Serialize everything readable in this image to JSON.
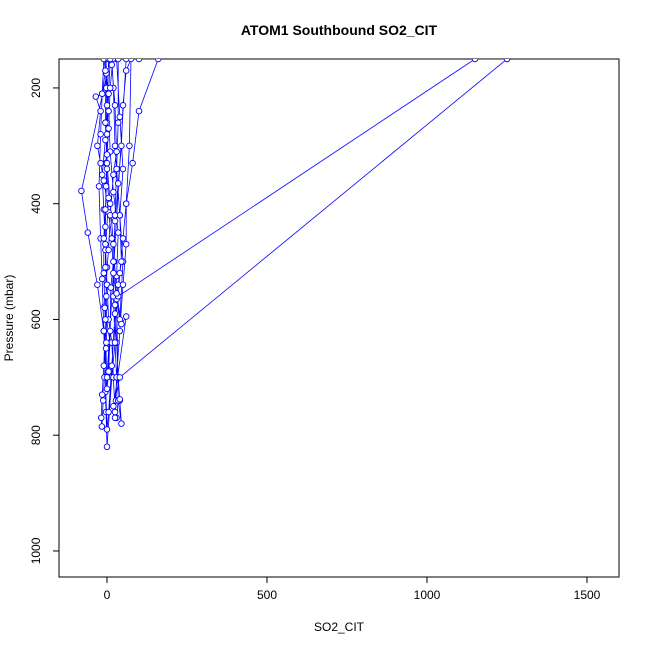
{
  "chart_data": {
    "type": "scatter",
    "title": "ATOM1 Southbound SO2_CIT",
    "xlabel": "SO2_CIT",
    "ylabel": "Pressure (mbar)",
    "xlim": [
      -150,
      1600
    ],
    "ylim": [
      1045,
      150
    ],
    "y_reversed": true,
    "x_ticks": [
      0,
      500,
      1000,
      1500
    ],
    "y_ticks": [
      200,
      400,
      600,
      800,
      1000
    ],
    "grid": false,
    "series": [
      {
        "color": "#0000ff",
        "marker": "open-circle",
        "line": true,
        "points": [
          [
            -5,
            150
          ],
          [
            -2,
            200
          ],
          [
            0,
            260
          ],
          [
            -3,
            330
          ],
          [
            5,
            390
          ],
          [
            -5,
            480
          ],
          [
            0,
            540
          ],
          [
            -8,
            578
          ],
          [
            10,
            640
          ],
          [
            0,
            700
          ],
          [
            -5,
            725
          ],
          [
            -3,
            760
          ],
          [
            0,
            820
          ],
          [
            15,
            700
          ],
          [
            25,
            640
          ],
          [
            30,
            560
          ],
          [
            20,
            470
          ],
          [
            10,
            400
          ],
          [
            0,
            330
          ],
          [
            -5,
            260
          ],
          [
            -3,
            150
          ],
          [
            -2,
            175
          ],
          [
            5,
            240
          ],
          [
            10,
            310
          ],
          [
            20,
            380
          ],
          [
            35,
            450
          ],
          [
            30,
            525
          ],
          [
            25,
            590
          ],
          [
            15,
            680
          ],
          [
            5,
            760
          ],
          [
            0,
            790
          ],
          [
            -5,
            700
          ],
          [
            -10,
            620
          ],
          [
            -15,
            530
          ],
          [
            -20,
            460
          ],
          [
            -25,
            370
          ],
          [
            -20,
            280
          ],
          [
            -15,
            210
          ],
          [
            -10,
            150
          ],
          [
            -5,
            170
          ],
          [
            -15,
            210
          ],
          [
            -35,
            215
          ],
          [
            -20,
            240
          ],
          [
            -30,
            300
          ],
          [
            -20,
            330
          ],
          [
            -10,
            360
          ],
          [
            5,
            415
          ],
          [
            15,
            460
          ],
          [
            20,
            520
          ],
          [
            30,
            565
          ],
          [
            40,
            600
          ],
          [
            50,
            500
          ],
          [
            40,
            420
          ],
          [
            30,
            340
          ],
          [
            25,
            300
          ],
          [
            20,
            200
          ],
          [
            15,
            150
          ],
          [
            30,
            150
          ],
          [
            40,
            250
          ],
          [
            50,
            340
          ],
          [
            40,
            420
          ],
          [
            45,
            500
          ],
          [
            35,
            540
          ],
          [
            25,
            575
          ],
          [
            30,
            640
          ],
          [
            35,
            700
          ],
          [
            40,
            740
          ],
          [
            45,
            780
          ],
          [
            35,
            740
          ],
          [
            30,
            770
          ],
          [
            25,
            760
          ],
          [
            20,
            700
          ],
          [
            15,
            640
          ],
          [
            5,
            600
          ],
          [
            0,
            540
          ],
          [
            -5,
            470
          ],
          [
            -10,
            410
          ],
          [
            -15,
            350
          ],
          [
            -5,
            290
          ],
          [
            0,
            230
          ],
          [
            5,
            150
          ],
          [
            15,
            160
          ],
          [
            25,
            230
          ],
          [
            30,
            310
          ],
          [
            20,
            350
          ],
          [
            10,
            420
          ],
          [
            5,
            480
          ],
          [
            0,
            510
          ],
          [
            -5,
            600
          ],
          [
            -10,
            680
          ],
          [
            -15,
            730
          ],
          [
            -18,
            770
          ],
          [
            -16,
            785
          ],
          [
            -12,
            740
          ],
          [
            -8,
            700
          ],
          [
            -2,
            640
          ],
          [
            -2,
            560
          ],
          [
            -5,
            510
          ],
          [
            -5,
            440
          ],
          [
            -3,
            370
          ],
          [
            0,
            315
          ],
          [
            5,
            270
          ],
          [
            10,
            200
          ],
          [
            18,
            150
          ],
          [
            35,
            150
          ],
          [
            35,
            260
          ],
          [
            30,
            340
          ],
          [
            25,
            420
          ],
          [
            22,
            500
          ],
          [
            20,
            560
          ],
          [
            25,
            640
          ],
          [
            30,
            700
          ],
          [
            28,
            740
          ],
          [
            25,
            770
          ],
          [
            30,
            700
          ],
          [
            40,
            620
          ],
          [
            50,
            540
          ],
          [
            60,
            470
          ],
          [
            60,
            400
          ],
          [
            70,
            300
          ],
          [
            75,
            150
          ],
          [
            60,
            170
          ],
          [
            50,
            230
          ],
          [
            45,
            300
          ],
          [
            35,
            365
          ],
          [
            25,
            430
          ],
          [
            20,
            500
          ],
          [
            12,
            545
          ],
          [
            10,
            620
          ],
          [
            5,
            690
          ],
          [
            0,
            720
          ],
          [
            -3,
            650
          ],
          [
            -7,
            580
          ],
          [
            -10,
            520
          ],
          [
            -10,
            460
          ],
          [
            -5,
            410
          ],
          [
            0,
            340
          ],
          [
            0,
            280
          ],
          [
            5,
            210
          ],
          [
            10,
            150
          ],
          [
            -80,
            378
          ],
          [
            -60,
            450
          ],
          [
            -30,
            540
          ],
          [
            -10,
            620
          ],
          [
            0,
            700
          ],
          [
            60,
            150
          ],
          [
            100,
            150
          ],
          [
            160,
            150
          ],
          [
            100,
            240
          ],
          [
            80,
            330
          ],
          [
            60,
            400
          ],
          [
            50,
            460
          ],
          [
            40,
            520
          ],
          [
            35,
            560
          ],
          [
            1150,
            150
          ],
          [
            1250,
            150
          ],
          [
            40,
            700
          ],
          [
            20,
            750
          ],
          [
            60,
            595
          ],
          [
            45,
            608
          ],
          [
            30,
            555
          ],
          [
            35,
            740
          ],
          [
            40,
            738
          ]
        ]
      }
    ]
  }
}
